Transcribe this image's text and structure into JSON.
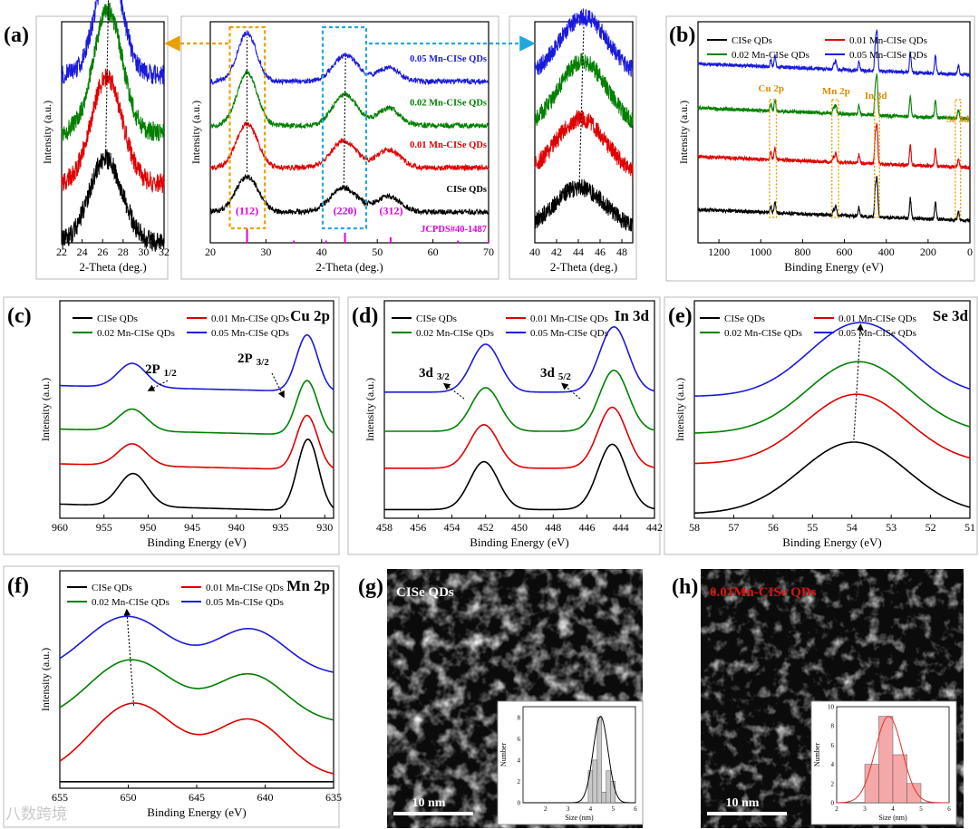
{
  "figure": {
    "watermark": "八数跨境",
    "colors": {
      "ref": "#e000e0",
      "accent_orange": "#e8a000",
      "accent_blue": "#22a8e0",
      "label_orange": "#e08a00"
    }
  },
  "series_meta": [
    {
      "name": "CISe QDs",
      "color": "#000000"
    },
    {
      "name": "0.01 Mn-CISe QDs",
      "color": "#e00000"
    },
    {
      "name": "0.02 Mn-CISe QDs",
      "color": "#008000"
    },
    {
      "name": "0.05 Mn-CISe QDs",
      "color": "#1a1adc"
    }
  ],
  "chart_data": [
    {
      "id": "a_left",
      "panel_label": "(a)",
      "type": "line",
      "xlabel": "2-Theta (deg.)",
      "ylabel": "Intensity (a.u.)",
      "xlim": [
        22,
        32
      ],
      "xticks": [
        22,
        24,
        26,
        28,
        30,
        32
      ],
      "reverse_x": false,
      "series": [
        {
          "name": "CISe QDs",
          "peaks": [
            {
              "x": 26.3,
              "h": 0.38,
              "w": 1.6
            }
          ],
          "offset": 0.0,
          "noise": 0.045
        },
        {
          "name": "0.01 Mn-CISe QDs",
          "peaks": [
            {
              "x": 26.4,
              "h": 0.48,
              "w": 1.5
            }
          ],
          "offset": 0.27,
          "noise": 0.045
        },
        {
          "name": "0.02 Mn-CISe QDs",
          "peaks": [
            {
              "x": 26.5,
              "h": 0.55,
              "w": 1.4
            }
          ],
          "offset": 0.5,
          "noise": 0.045
        },
        {
          "name": "0.05 Mn-CISe QDs",
          "peaks": [
            {
              "x": 26.6,
              "h": 0.5,
              "w": 1.3
            }
          ],
          "offset": 0.76,
          "noise": 0.045
        }
      ]
    },
    {
      "id": "a_main",
      "type": "line",
      "xlabel": "2-Theta (deg.)",
      "ylabel": "Intensity (a.u.)",
      "xlim": [
        20,
        70
      ],
      "xticks": [
        20,
        30,
        40,
        50,
        60,
        70
      ],
      "reverse_x": false,
      "series": [
        {
          "name": "CISe QDs",
          "label": "CISe QDs",
          "peaks": [
            {
              "x": 26.6,
              "h": 0.16,
              "w": 2.0
            },
            {
              "x": 44.0,
              "h": 0.11,
              "w": 2.4
            },
            {
              "x": 52.0,
              "h": 0.07,
              "w": 2.2
            }
          ],
          "offset": 0.14,
          "noise": 0.012
        },
        {
          "name": "0.01 Mn-CISe QDs",
          "label": "0.01 Mn-CISe QDs",
          "peaks": [
            {
              "x": 26.6,
              "h": 0.2,
              "w": 1.9
            },
            {
              "x": 44.0,
              "h": 0.12,
              "w": 2.3
            },
            {
              "x": 52.0,
              "h": 0.08,
              "w": 2.1
            }
          ],
          "offset": 0.34,
          "noise": 0.012
        },
        {
          "name": "0.02 Mn-CISe QDs",
          "label": "0.02 Mn-CISe QDs",
          "peaks": [
            {
              "x": 26.6,
              "h": 0.24,
              "w": 1.8
            },
            {
              "x": 44.2,
              "h": 0.14,
              "w": 2.2
            },
            {
              "x": 52.0,
              "h": 0.08,
              "w": 2.0
            }
          ],
          "offset": 0.53,
          "noise": 0.012
        },
        {
          "name": "0.05 Mn-CISe QDs",
          "label": "0.05  Mn-CISe QDs",
          "peaks": [
            {
              "x": 26.6,
              "h": 0.22,
              "w": 1.7
            },
            {
              "x": 44.3,
              "h": 0.12,
              "w": 2.2
            },
            {
              "x": 52.0,
              "h": 0.06,
              "w": 2.0
            }
          ],
          "offset": 0.73,
          "noise": 0.012
        }
      ],
      "reference": {
        "label": "JCPDS#40-1487",
        "lines": [
          {
            "x": 26.6,
            "h": 0.065
          },
          {
            "x": 44.2,
            "h": 0.045
          },
          {
            "x": 52.4,
            "h": 0.025
          },
          {
            "x": 35.0,
            "h": 0.01
          },
          {
            "x": 40.8,
            "h": 0.01
          },
          {
            "x": 64.5,
            "h": 0.01
          },
          {
            "x": 70.0,
            "h": 0.01
          }
        ]
      },
      "peak_labels": [
        {
          "text": "(112)",
          "x": 26.6
        },
        {
          "text": "(220)",
          "x": 44.2
        },
        {
          "text": "(312)",
          "x": 52.5
        }
      ],
      "highlight_boxes": [
        {
          "x0": 23.5,
          "x1": 29.8,
          "color": "#e8a000"
        },
        {
          "x0": 40.2,
          "x1": 48.0,
          "color": "#22a8e0"
        }
      ]
    },
    {
      "id": "a_right",
      "type": "line",
      "xlabel": "2-Theta (deg.)",
      "ylabel": "",
      "xlim": [
        40,
        49
      ],
      "xticks": [
        40,
        42,
        44,
        46,
        48
      ],
      "reverse_x": false,
      "series": [
        {
          "name": "CISe QDs",
          "peaks": [
            {
              "x": 44.1,
              "h": 0.2,
              "w": 2.4
            }
          ],
          "offset": 0.05,
          "noise": 0.04
        },
        {
          "name": "0.01 Mn-CISe QDs",
          "peaks": [
            {
              "x": 44.2,
              "h": 0.26,
              "w": 2.3
            }
          ],
          "offset": 0.3,
          "noise": 0.04
        },
        {
          "name": "0.02 Mn-CISe QDs",
          "peaks": [
            {
              "x": 44.4,
              "h": 0.3,
              "w": 2.2
            }
          ],
          "offset": 0.52,
          "noise": 0.04
        },
        {
          "name": "0.05 Mn-CISe QDs",
          "peaks": [
            {
              "x": 44.5,
              "h": 0.27,
              "w": 2.2
            }
          ],
          "offset": 0.75,
          "noise": 0.04
        }
      ]
    },
    {
      "id": "b",
      "panel_label": "(b)",
      "type": "line",
      "xlabel": "Binding Energy (eV)",
      "ylabel": "Intensity (a.u.)",
      "xlim": [
        0,
        1300
      ],
      "xticks": [
        1200,
        1000,
        800,
        600,
        400,
        200,
        0
      ],
      "reverse_x": true,
      "legend": true,
      "series": [
        {
          "name": "CISe QDs",
          "offset": 0.1,
          "noise": 0.008
        },
        {
          "name": "0.01 Mn-CISe QDs",
          "offset": 0.34,
          "noise": 0.008
        },
        {
          "name": "0.02 Mn-CISe QDs",
          "offset": 0.56,
          "noise": 0.008
        },
        {
          "name": "0.05 Mn-CISe QDs",
          "offset": 0.76,
          "noise": 0.008
        }
      ],
      "survey_peaks": [
        {
          "x": 932,
          "h": 0.05
        },
        {
          "x": 952,
          "h": 0.03
        },
        {
          "x": 641,
          "h": 0.04
        },
        {
          "x": 651,
          "h": 0.025
        },
        {
          "x": 530,
          "h": 0.04
        },
        {
          "x": 444,
          "h": 0.16
        },
        {
          "x": 452,
          "h": 0.12
        },
        {
          "x": 285,
          "h": 0.09
        },
        {
          "x": 165,
          "h": 0.08
        },
        {
          "x": 55,
          "h": 0.04
        }
      ],
      "annotations": [
        {
          "text": "Cu 2p",
          "x": 940
        },
        {
          "text": "Mn 2p",
          "x": 640
        },
        {
          "text": "In 3d",
          "x": 445
        },
        {
          "text": "Se 3d",
          "x": 55
        }
      ]
    },
    {
      "id": "c",
      "panel_label": "(c)",
      "title": "Cu 2p",
      "type": "line",
      "xlabel": "Binding Energy (eV)",
      "ylabel": "Intensity (a.u.)",
      "xlim": [
        929,
        960
      ],
      "xticks": [
        960,
        955,
        950,
        945,
        940,
        935,
        930
      ],
      "reverse_x": true,
      "legend": true,
      "series": [
        {
          "name": "CISe QDs",
          "peaks": [
            {
              "x": 951.7,
              "h": 0.15,
              "w": 1.6
            },
            {
              "x": 931.9,
              "h": 0.33,
              "w": 1.2
            }
          ],
          "offset": 0.03,
          "noise": 0.0,
          "baseline_tilt": 0.035
        },
        {
          "name": "0.01 Mn-CISe QDs",
          "peaks": [
            {
              "x": 951.8,
              "h": 0.1,
              "w": 1.6
            },
            {
              "x": 932.0,
              "h": 0.25,
              "w": 1.2
            }
          ],
          "offset": 0.22,
          "noise": 0.0,
          "baseline_tilt": 0.03
        },
        {
          "name": "0.02 Mn-CISe QDs",
          "peaks": [
            {
              "x": 951.8,
              "h": 0.1,
              "w": 1.6
            },
            {
              "x": 932.0,
              "h": 0.25,
              "w": 1.2
            }
          ],
          "offset": 0.38,
          "noise": 0.0,
          "baseline_tilt": 0.03
        },
        {
          "name": "0.05 Mn-CISe QDs",
          "peaks": [
            {
              "x": 951.8,
              "h": 0.11,
              "w": 1.6
            },
            {
              "x": 932.0,
              "h": 0.26,
              "w": 1.2
            }
          ],
          "offset": 0.58,
          "noise": 0.0,
          "baseline_tilt": 0.03
        }
      ],
      "annotations": [
        {
          "text": "2P",
          "sub": "1/2"
        },
        {
          "text": "2P",
          "sub": "3/2"
        }
      ]
    },
    {
      "id": "d",
      "panel_label": "(d)",
      "title": "In 3d",
      "type": "line",
      "xlabel": "Binding Energy (eV)",
      "ylabel": "Intensity (a.u.)",
      "xlim": [
        442,
        458
      ],
      "xticks": [
        458,
        456,
        454,
        452,
        450,
        448,
        446,
        444,
        442
      ],
      "reverse_x": true,
      "legend": true,
      "series": [
        {
          "name": "CISe QDs",
          "peaks": [
            {
              "x": 452.1,
              "h": 0.22,
              "w": 0.85
            },
            {
              "x": 444.5,
              "h": 0.3,
              "w": 0.85
            }
          ],
          "offset": 0.04,
          "noise": 0.0
        },
        {
          "name": "0.01 Mn-CISe QDs",
          "peaks": [
            {
              "x": 452.1,
              "h": 0.2,
              "w": 0.85
            },
            {
              "x": 444.5,
              "h": 0.28,
              "w": 0.85
            }
          ],
          "offset": 0.23,
          "noise": 0.0
        },
        {
          "name": "0.02 Mn-CISe QDs",
          "peaks": [
            {
              "x": 452.0,
              "h": 0.2,
              "w": 0.85
            },
            {
              "x": 444.4,
              "h": 0.28,
              "w": 0.85
            }
          ],
          "offset": 0.4,
          "noise": 0.0
        },
        {
          "name": "0.05 Mn-CISe QDs",
          "peaks": [
            {
              "x": 452.0,
              "h": 0.22,
              "w": 0.85
            },
            {
              "x": 444.4,
              "h": 0.3,
              "w": 0.85
            }
          ],
          "offset": 0.58,
          "noise": 0.0
        }
      ],
      "annotations": [
        {
          "text": "3d",
          "sub": "3/2"
        },
        {
          "text": "3d",
          "sub": "5/2"
        }
      ]
    },
    {
      "id": "e",
      "panel_label": "(e)",
      "title": "Se 3d",
      "type": "line",
      "xlabel": "Binding Energy (eV)",
      "ylabel": "Intensity (a.u.)",
      "xlim": [
        51,
        58
      ],
      "xticks": [
        58,
        57,
        56,
        55,
        54,
        53,
        52,
        51
      ],
      "reverse_x": true,
      "legend": true,
      "series": [
        {
          "name": "CISe QDs",
          "peaks": [
            {
              "x": 53.95,
              "h": 0.33,
              "w": 1.35
            }
          ],
          "offset": 0.02,
          "noise": 0.0
        },
        {
          "name": "0.01 Mn-CISe QDs",
          "peaks": [
            {
              "x": 53.88,
              "h": 0.32,
              "w": 1.3
            }
          ],
          "offset": 0.25,
          "noise": 0.0
        },
        {
          "name": "0.02 Mn-CISe QDs",
          "peaks": [
            {
              "x": 53.83,
              "h": 0.33,
              "w": 1.3
            }
          ],
          "offset": 0.39,
          "noise": 0.0
        },
        {
          "name": "0.05 Mn-CISe QDs",
          "peaks": [
            {
              "x": 53.78,
              "h": 0.34,
              "w": 1.3
            }
          ],
          "offset": 0.56,
          "noise": 0.0
        }
      ]
    },
    {
      "id": "f",
      "panel_label": "(f)",
      "title": "Mn 2p",
      "type": "line",
      "xlabel": "Binding Energy (eV)",
      "ylabel": "Intensity (a.u.)",
      "xlim": [
        635,
        655
      ],
      "xticks": [
        655,
        650,
        645,
        640,
        635
      ],
      "reverse_x": true,
      "legend": true,
      "series": [
        {
          "name": "CISe QDs",
          "peaks": [],
          "offset": 0.03,
          "noise": 0.0
        },
        {
          "name": "0.01 Mn-CISe QDs",
          "peaks": [
            {
              "x": 649.6,
              "h": 0.34,
              "w": 3.1
            },
            {
              "x": 641.1,
              "h": 0.26,
              "w": 2.6
            }
          ],
          "offset": 0.05,
          "noise": 0.0
        },
        {
          "name": "0.02 Mn-CISe QDs",
          "peaks": [
            {
              "x": 649.8,
              "h": 0.29,
              "w": 3.1
            },
            {
              "x": 641.1,
              "h": 0.22,
              "w": 2.6
            }
          ],
          "offset": 0.3,
          "noise": 0.0
        },
        {
          "name": "0.05 Mn-CISe QDs",
          "peaks": [
            {
              "x": 650.1,
              "h": 0.27,
              "w": 3.1
            },
            {
              "x": 641.1,
              "h": 0.21,
              "w": 2.6
            }
          ],
          "offset": 0.52,
          "noise": 0.0
        }
      ]
    },
    {
      "id": "g",
      "panel_label": "(g)",
      "type": "image",
      "image_label": "CISe QDs",
      "scale_bar": "10 nm",
      "inset": {
        "type": "bar",
        "xlabel": "Size (nm)",
        "ylabel": "Number",
        "xlim": [
          1,
          6
        ],
        "ylim": [
          0,
          9
        ],
        "xticks": [
          2,
          3,
          4,
          5,
          6
        ],
        "yticks": [
          0,
          2,
          4,
          6,
          8
        ],
        "bins": [
          {
            "x": 4.0,
            "w": 0.2,
            "v": 3
          },
          {
            "x": 4.2,
            "w": 0.2,
            "v": 4
          },
          {
            "x": 4.4,
            "w": 0.2,
            "v": 8
          },
          {
            "x": 4.6,
            "w": 0.2,
            "v": 1
          },
          {
            "x": 4.8,
            "w": 0.2,
            "v": 3
          },
          {
            "x": 5.0,
            "w": 0.2,
            "v": 2
          }
        ],
        "fit": {
          "mu": 4.45,
          "sigma": 0.33,
          "amp": 8.1
        },
        "bar_color": "#c8c8c8",
        "fit_color": "#000000"
      }
    },
    {
      "id": "h",
      "panel_label": "(h)",
      "type": "image",
      "image_label": "0.01Mn-CISe QDs",
      "scale_bar": "10 nm",
      "inset": {
        "type": "bar",
        "xlabel": "Size (nm)",
        "ylabel": "Number",
        "xlim": [
          2,
          6
        ],
        "ylim": [
          0,
          10
        ],
        "xticks": [
          2,
          3,
          4,
          5,
          6
        ],
        "yticks": [
          0,
          2,
          4,
          6,
          8,
          10
        ],
        "bins": [
          {
            "x": 3.25,
            "w": 0.5,
            "v": 4
          },
          {
            "x": 3.75,
            "w": 0.5,
            "v": 9
          },
          {
            "x": 4.25,
            "w": 0.5,
            "v": 5
          },
          {
            "x": 4.75,
            "w": 0.5,
            "v": 2
          }
        ],
        "fit": {
          "mu": 3.85,
          "sigma": 0.48,
          "amp": 9.0
        },
        "bar_color": "#f5a8a8",
        "fit_color": "#e03030"
      }
    }
  ]
}
